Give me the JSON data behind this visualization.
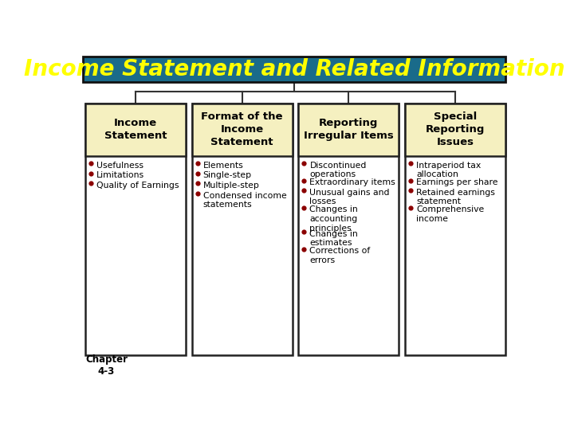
{
  "title": "Income Statement and Related Information",
  "title_bg": "#1a6b8a",
  "title_fg": "#ffff00",
  "title_font_size": 20,
  "box_header_bg": "#f5f0c0",
  "box_border_color": "#222222",
  "box_body_bg": "#ffffff",
  "bullet_color": "#8b0000",
  "text_color": "#000000",
  "header_font_size": 9.5,
  "bullet_font_size": 7.8,
  "chapter_text": "Chapter\n4-3",
  "bg_color": "#ffffff",
  "columns": [
    {
      "header": "Income\nStatement",
      "items": [
        "Usefulness",
        "Limitations",
        "Quality of Earnings"
      ]
    },
    {
      "header": "Format of the\nIncome\nStatement",
      "items": [
        "Elements",
        "Single-step",
        "Multiple-step",
        "Condensed income\nstatements"
      ]
    },
    {
      "header": "Reporting\nIrregular Items",
      "items": [
        "Discontinued\noperations",
        "Extraordinary items",
        "Unusual gains and\nlosses",
        "Changes in\naccounting\nprinciples",
        "Changes in\nestimates",
        "Corrections of\nerrors"
      ]
    },
    {
      "header": "Special\nReporting\nIssues",
      "items": [
        "Intraperiod tax\nallocation",
        "Earnings per share",
        "Retained earnings\nstatement",
        "Comprehensive\nincome"
      ]
    }
  ]
}
